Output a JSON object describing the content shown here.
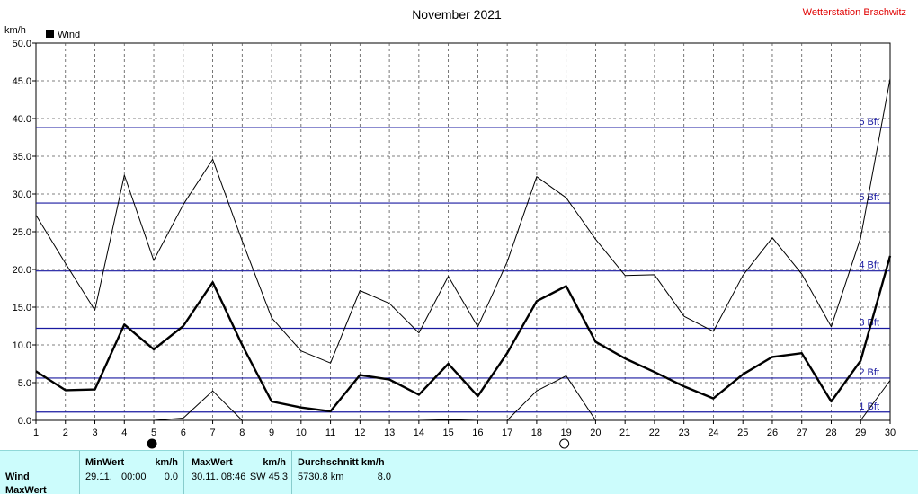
{
  "header": {
    "title": "November 2021",
    "station": "Wetterstation Brachwitz"
  },
  "legend": {
    "label": "Wind"
  },
  "colors": {
    "grid": "#555555",
    "bft": "#1a1aa0",
    "station": "#e00000",
    "panel": "#ccfcfc"
  },
  "chart_data": {
    "type": "line",
    "title": "November 2021",
    "ylabel": "km/h",
    "xlabel": "",
    "x": [
      1,
      2,
      3,
      4,
      5,
      6,
      7,
      8,
      9,
      10,
      11,
      12,
      13,
      14,
      15,
      16,
      17,
      18,
      19,
      20,
      21,
      22,
      23,
      24,
      25,
      26,
      27,
      28,
      29,
      30
    ],
    "xlim": [
      1,
      30
    ],
    "ylim": [
      0,
      50
    ],
    "y_ticks": [
      "0.0",
      "5.0",
      "10.0",
      "15.0",
      "20.0",
      "25.0",
      "30.0",
      "35.0",
      "40.0",
      "45.0",
      "50.0"
    ],
    "grid": true,
    "legend_position": "top-left",
    "series": [
      {
        "name": "Wind",
        "role": "average",
        "values": [
          6.5,
          4.0,
          4.1,
          12.7,
          9.4,
          12.5,
          18.3,
          10.0,
          2.5,
          1.7,
          1.2,
          6.0,
          5.4,
          3.4,
          7.5,
          3.2,
          8.9,
          15.8,
          17.8,
          10.4,
          8.2,
          6.4,
          4.5,
          2.9,
          6.1,
          8.4,
          8.9,
          2.5,
          7.9,
          21.8
        ]
      },
      {
        "role": "max",
        "values": [
          27.2,
          20.8,
          14.6,
          32.5,
          21.2,
          28.6,
          34.6,
          23.8,
          13.6,
          9.2,
          7.6,
          17.2,
          15.5,
          11.6,
          19.1,
          12.4,
          21.0,
          32.3,
          29.5,
          24.0,
          19.2,
          19.3,
          13.8,
          11.8,
          19.2,
          24.2,
          19.4,
          12.4,
          24.2,
          45.3
        ]
      },
      {
        "role": "min",
        "values": [
          0,
          0,
          0,
          0,
          0,
          0.3,
          3.9,
          0,
          0,
          0,
          0,
          0,
          0,
          0,
          0.1,
          0,
          0,
          3.9,
          5.9,
          0,
          0,
          0,
          0,
          0,
          0,
          0,
          0,
          0,
          0,
          5.3
        ]
      }
    ],
    "beaufort": [
      {
        "label": "1 Bft",
        "value": 1.1
      },
      {
        "label": "2 Bft",
        "value": 5.6
      },
      {
        "label": "3 Bft",
        "value": 12.2
      },
      {
        "label": "4 Bft",
        "value": 19.8
      },
      {
        "label": "5 Bft",
        "value": 28.8
      },
      {
        "label": "6 Bft",
        "value": 38.8
      }
    ],
    "moon_phases": [
      {
        "day": 5,
        "phase": "new"
      },
      {
        "day": 19,
        "phase": "full"
      }
    ]
  },
  "panel": {
    "row_label": "Wind",
    "row_label_2": "MaxWert",
    "min": {
      "header": "MinWert",
      "unit": "km/h",
      "date": "29.11.",
      "time": "00:00",
      "value": "0.0"
    },
    "max": {
      "header": "MaxWert",
      "unit": "km/h",
      "datetime": "30.11. 08:46",
      "dir_value": "SW 45.3"
    },
    "avg": {
      "header": "Durchschnitt km/h",
      "distance": "5730.8 km",
      "value": "8.0"
    }
  }
}
